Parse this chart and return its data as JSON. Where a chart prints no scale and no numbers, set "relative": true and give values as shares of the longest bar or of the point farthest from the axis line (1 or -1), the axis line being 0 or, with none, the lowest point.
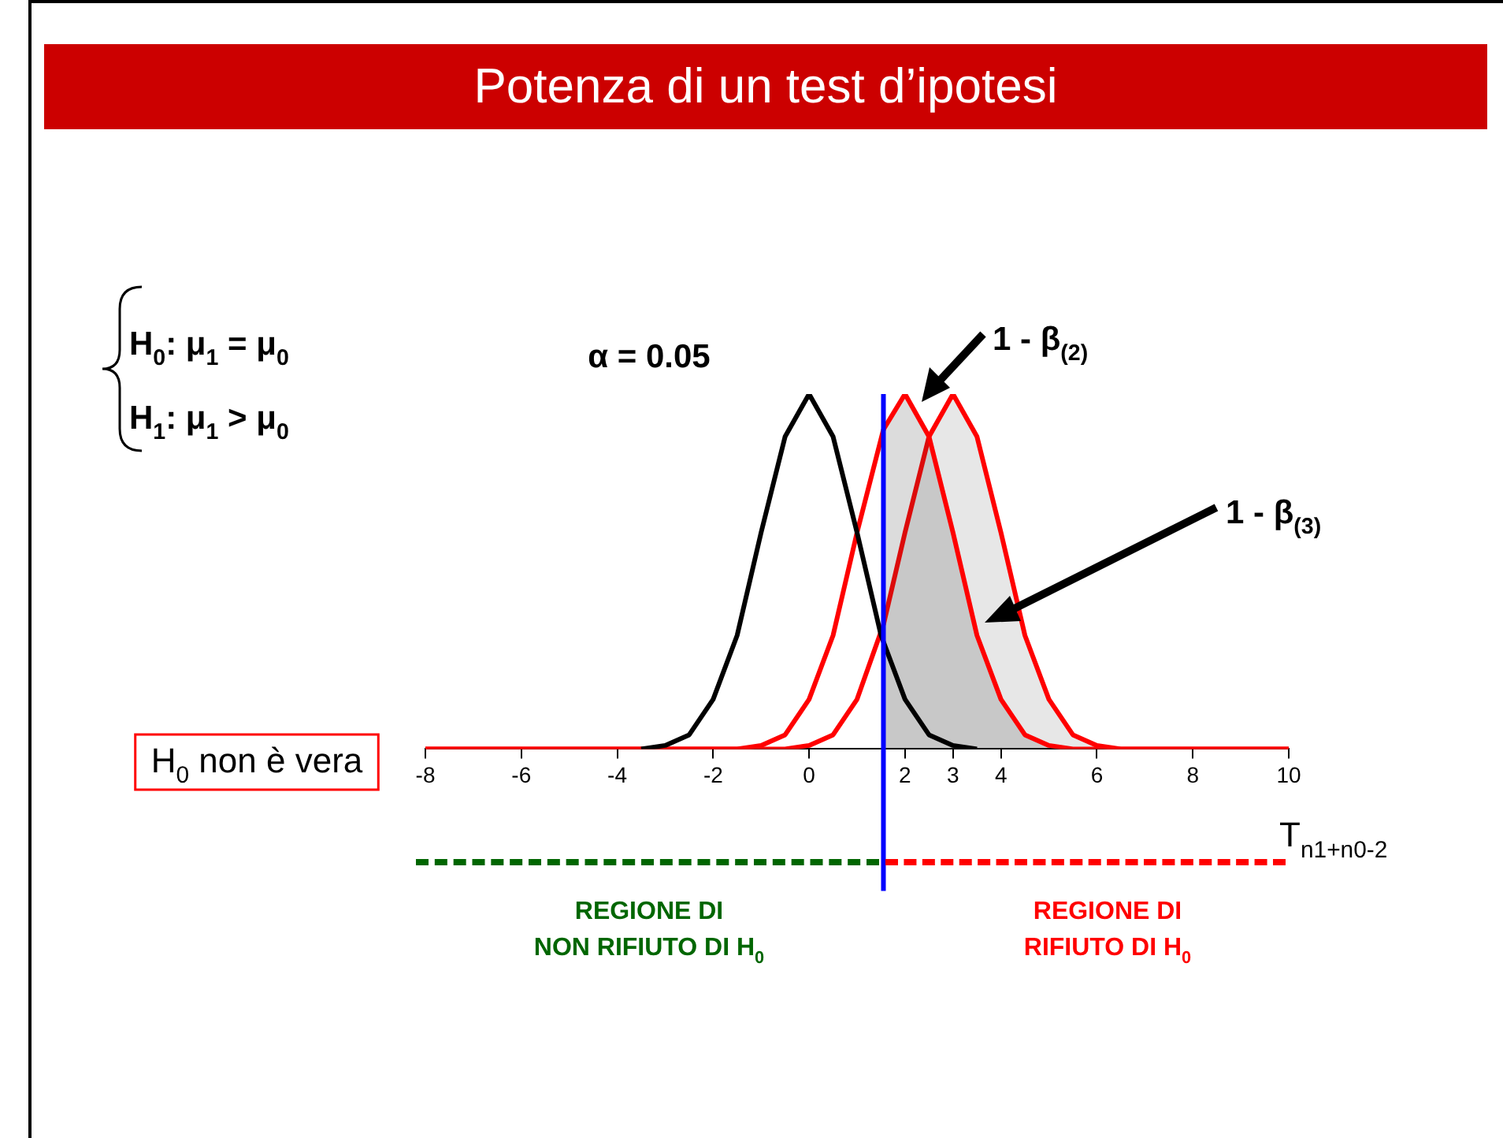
{
  "chart_data": {
    "type": "line",
    "title": "Potenza di un test d’ipotesi",
    "xlabel": "T$_{n1+n0-2}$",
    "relative": true,
    "xlim": [
      -8,
      10
    ],
    "xticks": [
      -8,
      -6,
      -4,
      -2,
      0,
      2,
      3,
      4,
      6,
      8,
      10
    ],
    "series": [
      {
        "color": "#000000",
        "x": [
          -3.5,
          -3,
          -2.5,
          -2,
          -1.5,
          -1,
          -0.5,
          0,
          0.5,
          1,
          1.5,
          2,
          2.5,
          3,
          3.5
        ],
        "values": [
          0,
          0.01,
          0.04,
          0.14,
          0.32,
          0.61,
          0.88,
          1,
          0.88,
          0.61,
          0.32,
          0.14,
          0.04,
          0.01,
          0
        ]
      },
      {
        "color": "#ff0000",
        "x": [
          -8,
          -1.5,
          -1,
          -0.5,
          0,
          0.5,
          1,
          1.55,
          2,
          2.5,
          3,
          3.5,
          4,
          4.5,
          5,
          5.5,
          10
        ],
        "values": [
          0,
          0,
          0.01,
          0.04,
          0.14,
          0.32,
          0.61,
          0.9,
          1,
          0.88,
          0.61,
          0.32,
          0.14,
          0.04,
          0.01,
          0,
          0
        ]
      },
      {
        "color": "#ff0000",
        "x": [
          -8,
          -0.5,
          0,
          0.5,
          1,
          1.55,
          2,
          2.5,
          3,
          3.5,
          4,
          4.5,
          5,
          5.5,
          6,
          6.5,
          10
        ],
        "values": [
          0,
          0,
          0.01,
          0.04,
          0.14,
          0.35,
          0.61,
          0.88,
          1,
          0.88,
          0.61,
          0.32,
          0.14,
          0.04,
          0.01,
          0,
          0
        ]
      }
    ],
    "ref_lines": [
      {
        "axis": "x",
        "value": 1.55,
        "color": "#0000ff"
      }
    ],
    "annotations": [
      "H$_{0}$: μ$_{1}$ = μ$_{0}$",
      "H$_{1}$: μ$_{1}$ > μ$_{0}$",
      "α = 0.05",
      "1 - β$_{(2)}$",
      "1 - β$_{(3)}$",
      "H$_{0}$ non è vera",
      "REGIONE DI\nNON RIFIUTO DI H$_{0}$",
      "REGIONE DI\nRIFIUTO DI H$_{0}$"
    ]
  }
}
